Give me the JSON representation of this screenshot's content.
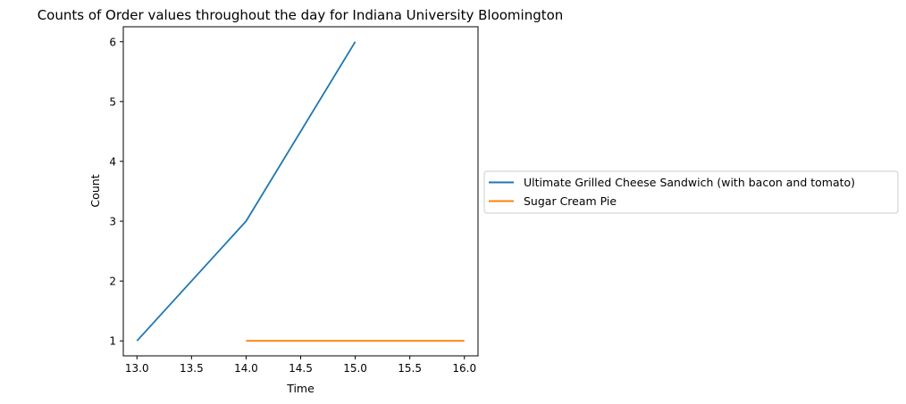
{
  "chart_data": {
    "type": "line",
    "title": "Counts of Order values throughout the day for Indiana University Bloomington",
    "xlabel": "Time",
    "ylabel": "Count",
    "xlim": [
      12.875,
      16.125
    ],
    "ylim": [
      0.75,
      6.25
    ],
    "xticks": [
      13.0,
      13.5,
      14.0,
      14.5,
      15.0,
      15.5,
      16.0
    ],
    "xtick_labels": [
      "13.0",
      "13.5",
      "14.0",
      "14.5",
      "15.0",
      "15.5",
      "16.0"
    ],
    "yticks": [
      1,
      2,
      3,
      4,
      5,
      6
    ],
    "ytick_labels": [
      "1",
      "2",
      "3",
      "4",
      "5",
      "6"
    ],
    "grid": false,
    "legend_placement": "right, outside plot",
    "series": [
      {
        "name": "Ultimate Grilled Cheese Sandwich (with bacon and tomato)",
        "color": "#1f77b4",
        "x": [
          13,
          14,
          15
        ],
        "y": [
          1,
          3,
          6
        ]
      },
      {
        "name": "Sugar Cream Pie",
        "color": "#ff7f0e",
        "x": [
          14,
          15,
          16
        ],
        "y": [
          1,
          1,
          1
        ]
      }
    ]
  }
}
